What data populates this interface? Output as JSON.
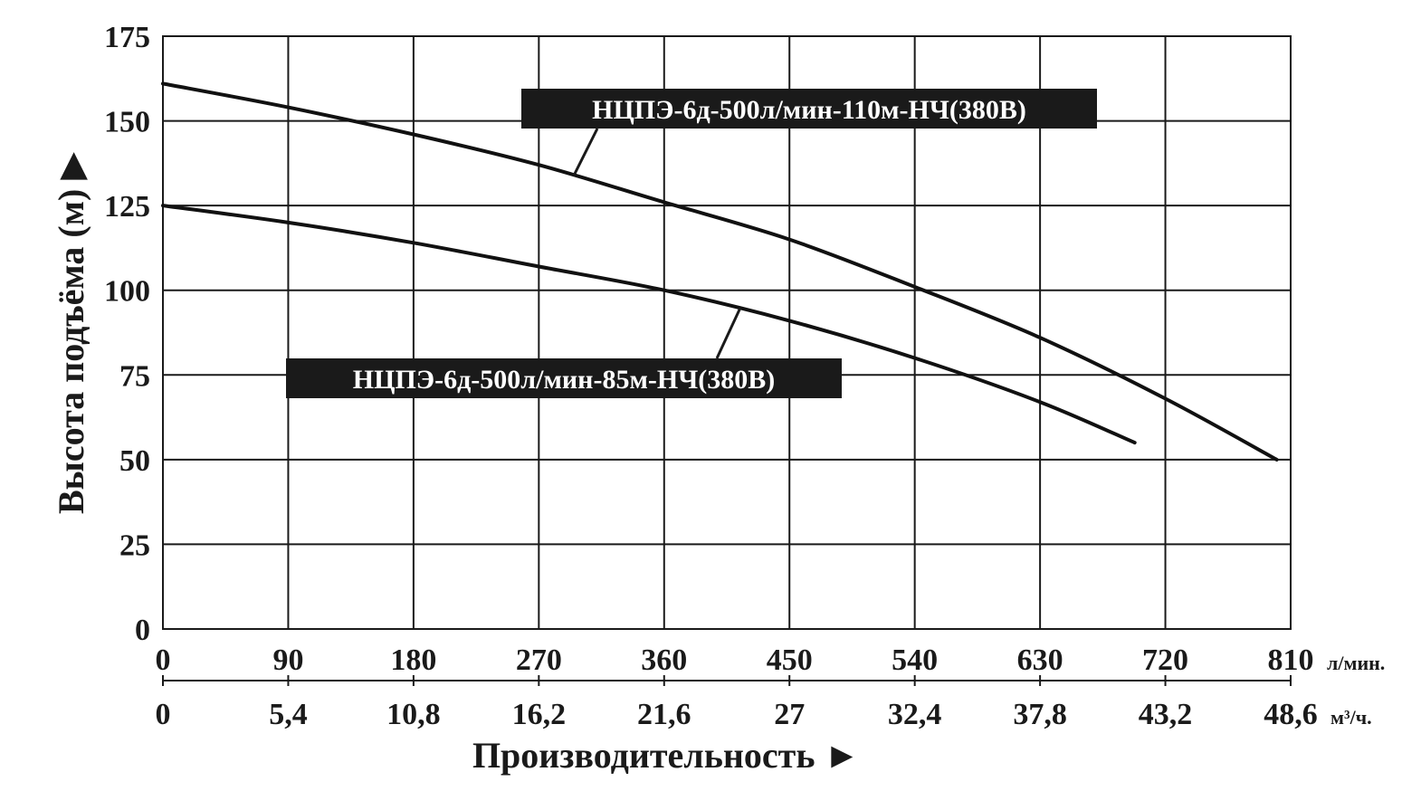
{
  "chart_data": {
    "type": "line",
    "ylabel": "Высота подъёма (м) ▶",
    "xlabel": "Производительность ►",
    "ylim": [
      0,
      175
    ],
    "yticks": [
      "0",
      "25",
      "50",
      "75",
      "100",
      "125",
      "150",
      "175"
    ],
    "xlim": [
      0,
      810
    ],
    "xticks_primary": [
      "0",
      "90",
      "180",
      "270",
      "360",
      "450",
      "540",
      "630",
      "720",
      "810"
    ],
    "xticks_secondary": [
      "0",
      "5,4",
      "10,8",
      "16,2",
      "21,6",
      "27",
      "32,4",
      "37,8",
      "43,2",
      "48,6"
    ],
    "x_unit_primary": "л/мин.",
    "x_unit_secondary": "м³/ч.",
    "grid": true,
    "series": [
      {
        "name": "НЦПЭ-6д-500л/мин-110м-НЧ(380В)",
        "color": "#111111",
        "x": [
          0,
          90,
          180,
          270,
          360,
          450,
          540,
          630,
          720,
          800
        ],
        "y": [
          161,
          154,
          146,
          137,
          126,
          115,
          101,
          86,
          68,
          50
        ]
      },
      {
        "name": "НЦПЭ-6д-500л/мин-85м-НЧ(380В)",
        "color": "#111111",
        "x": [
          0,
          90,
          180,
          270,
          360,
          450,
          540,
          630,
          698
        ],
        "y": [
          125,
          120,
          114,
          107,
          100,
          91,
          80,
          67,
          55
        ]
      }
    ]
  }
}
